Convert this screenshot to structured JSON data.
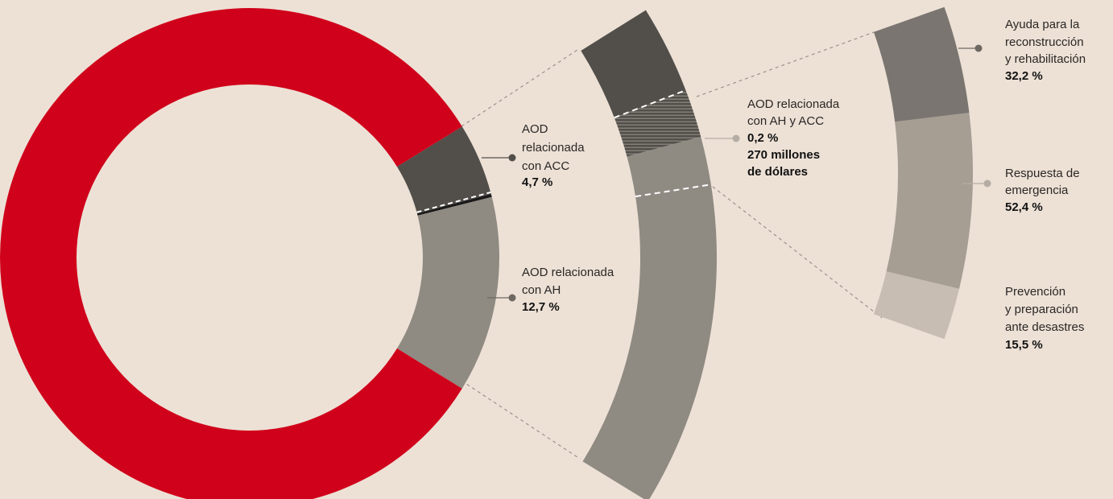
{
  "chart_data": {
    "type": "donut",
    "values": [
      82.4,
      4.7,
      0.2,
      12.7
    ],
    "colors": [
      "#d0021b",
      "#524f4a",
      "#1a1a1a",
      "#8f8a82"
    ],
    "labels": [
      null,
      [
        "AOD",
        "relacionada",
        "con ACC"
      ],
      [
        "AOD relacionada",
        "con AH y ACC"
      ],
      [
        "AOD relacionada",
        "con AH"
      ]
    ],
    "value_labels": [
      null,
      "4,7 %",
      "0,2 %",
      "12,7 %"
    ],
    "amount_label": [
      null,
      null,
      [
        "270 millones",
        "de dólares"
      ],
      null
    ],
    "breakdown": {
      "values": [
        32.2,
        52.4,
        15.5
      ],
      "colors": [
        "#7a7570",
        "#a69d93",
        "#c7bdb2"
      ],
      "labels": [
        [
          "Ayuda para la",
          "reconstrucción",
          "y rehabilitación"
        ],
        [
          "Respuesta de",
          "emergencia"
        ],
        [
          "Prevención",
          "y preparación",
          "ante desastres"
        ]
      ],
      "value_labels": [
        "32,2 %",
        "52,4 %",
        "15,5 %"
      ]
    }
  }
}
